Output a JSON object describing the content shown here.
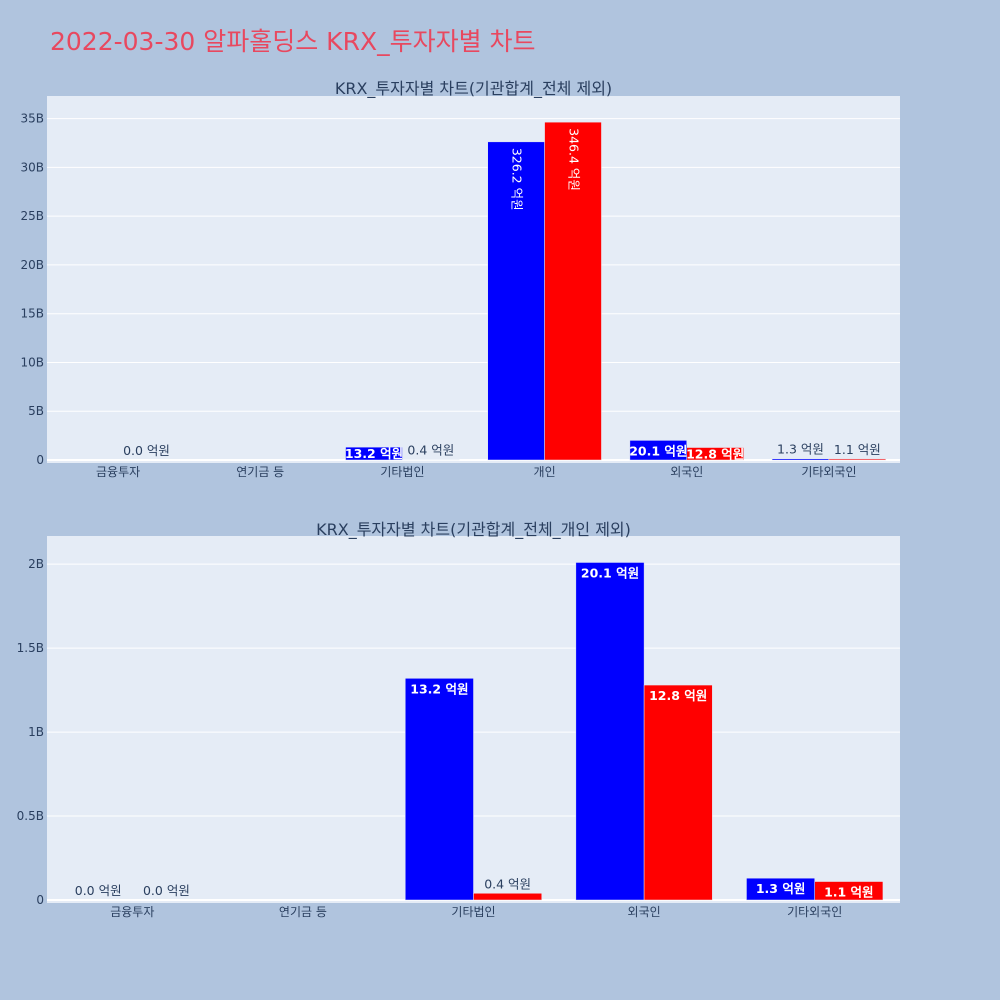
{
  "page_title": "2022-03-30 알파홀딩스 KRX_투자자별 차트",
  "colors": {
    "background": "#b0c4de",
    "plot_bg": "#e5ecf6",
    "title": "#e8485f",
    "series_a": "#0000ff",
    "series_b": "#ff0000",
    "text": "#2a3f5f"
  },
  "chart_data": [
    {
      "type": "bar",
      "title": "KRX_투자자별 차트(기관합계_전체 제외)",
      "categories": [
        "금융투자",
        "연기금 등",
        "기타법인",
        "개인",
        "외국인",
        "기타외국인"
      ],
      "ylim": [
        0,
        36500000000
      ],
      "yticks": [
        0,
        5000000000,
        10000000000,
        15000000000,
        20000000000,
        25000000000,
        30000000000,
        35000000000
      ],
      "ytick_labels": [
        "0",
        "5B",
        "10B",
        "15B",
        "20B",
        "25B",
        "30B",
        "35B"
      ],
      "grid": true,
      "series": [
        {
          "color": "#0000ff",
          "values": [
            0,
            null,
            1320000000,
            32620000000,
            2010000000,
            130000000
          ],
          "labels": [
            "",
            "",
            "13.2 억원",
            "326.2 억원",
            "20.1 억원",
            "1.3 억원"
          ]
        },
        {
          "color": "#ff0000",
          "values": [
            0,
            null,
            40000000,
            34640000000,
            1280000000,
            110000000
          ],
          "labels": [
            "0.0 억원",
            "",
            "0.4 억원",
            "346.4 억원",
            "12.8 억원",
            "1.1 억원"
          ]
        }
      ]
    },
    {
      "type": "bar",
      "title": "KRX_투자자별 차트(기관합계_전체_개인 제외)",
      "categories": [
        "금융투자",
        "연기금 등",
        "기타법인",
        "외국인",
        "기타외국인"
      ],
      "ylim": [
        0,
        2120000000
      ],
      "yticks": [
        0,
        500000000,
        1000000000,
        1500000000,
        2000000000
      ],
      "ytick_labels": [
        "0",
        "0.5B",
        "1B",
        "1.5B",
        "2B"
      ],
      "grid": true,
      "series": [
        {
          "color": "#0000ff",
          "values": [
            0,
            null,
            1320000000,
            2010000000,
            130000000
          ],
          "labels": [
            "0.0 억원",
            "",
            "13.2 억원",
            "20.1 억원",
            "1.3 억원"
          ]
        },
        {
          "color": "#ff0000",
          "values": [
            0,
            null,
            40000000,
            1280000000,
            110000000
          ],
          "labels": [
            "0.0 억원",
            "",
            "0.4 억원",
            "12.8 억원",
            "1.1 억원"
          ]
        }
      ]
    }
  ]
}
